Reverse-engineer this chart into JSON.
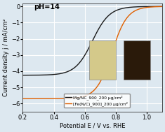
{
  "title": "",
  "xlabel": "Potential E / V vs. RHE",
  "ylabel": "Current density j / mA/cm²",
  "xlim": [
    0.2,
    1.1
  ],
  "ylim": [
    -6.5,
    0.2
  ],
  "xticks": [
    0.2,
    0.4,
    0.6,
    0.8,
    1.0
  ],
  "yticks": [
    0,
    -1.0,
    -2.0,
    -3.0,
    -4.0,
    -5.0,
    -6.0
  ],
  "annotation": "pH=14",
  "line1_color": "#1a1a1a",
  "line2_color": "#e06000",
  "legend1": "Mg/NC_900_200 µg/cm²",
  "legend2": "[Fe(N/C)_900]_200 µg/cm²",
  "bg_color": "#dde8f0",
  "grid_color": "#ffffff",
  "font_size": 6
}
